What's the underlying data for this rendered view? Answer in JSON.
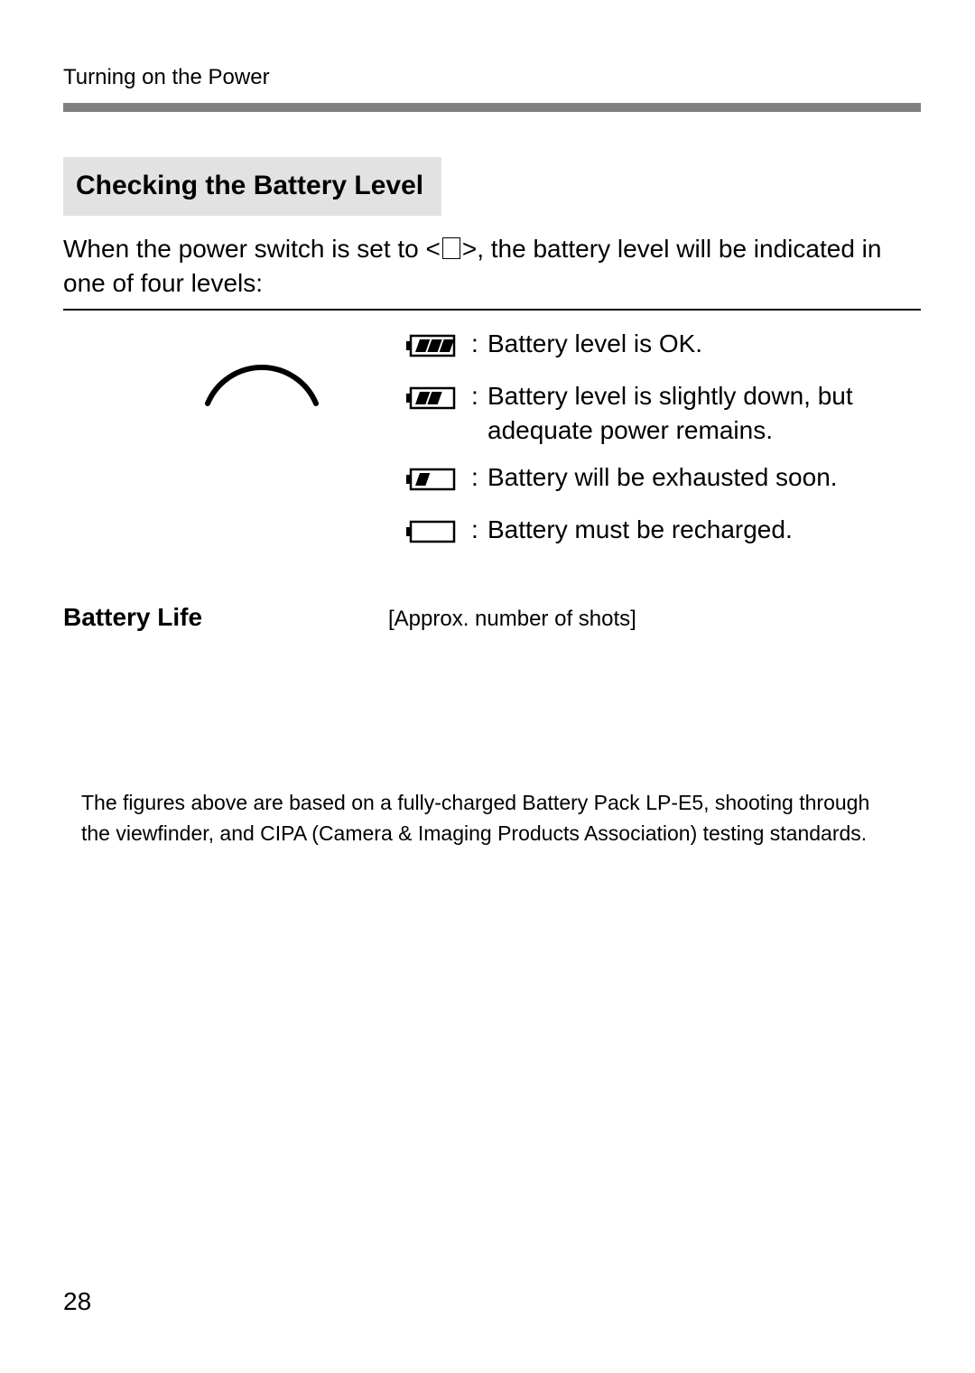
{
  "running_head": "Turning on the Power",
  "section_title": "Checking the Battery Level",
  "intro_pre": "When the power switch is set to <",
  "intro_post": ">, the battery level will be indicated in one of four levels:",
  "levels": [
    {
      "fill": 3,
      "desc": "Battery level is OK."
    },
    {
      "fill": 2,
      "desc": "Battery level is slightly down, but adequate power remains."
    },
    {
      "fill": 1,
      "desc": "Battery will be exhausted soon."
    },
    {
      "fill": 0,
      "desc": "Battery must be recharged."
    }
  ],
  "battery_icon": {
    "body_w": 48,
    "body_h": 22,
    "stroke": 2.5,
    "nub_w": 5,
    "nub_h": 10,
    "seg_count": 3
  },
  "arc_svg": {
    "w": 140,
    "h": 60,
    "stroke": "#000000",
    "stroke_w": 6
  },
  "subhead": "Battery Life",
  "subnote": "[Approx. number of shots]",
  "footnote": "The figures above are based on a fully-charged Battery Pack LP-E5, shooting through the viewfinder, and CIPA (Camera & Imaging Products Association) testing standards.",
  "page_number": "28",
  "colors": {
    "rule_gray": "#808080",
    "title_bg": "#e2e2e2",
    "text": "#000000"
  }
}
